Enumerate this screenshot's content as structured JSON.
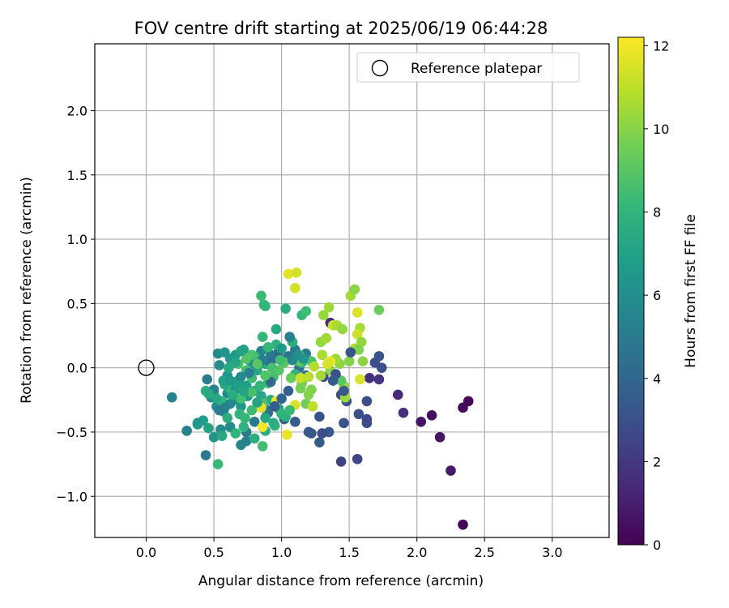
{
  "chart_data": {
    "type": "scatter",
    "title": "FOV centre drift starting at 2025/06/19 06:44:28",
    "xlabel": "Angular distance from reference (arcmin)",
    "ylabel": "Rotation from reference (arcmin)",
    "xlim": [
      -0.38,
      3.42
    ],
    "ylim": [
      -1.32,
      2.52
    ],
    "xticks": [
      0.0,
      0.5,
      1.0,
      1.5,
      2.0,
      2.5,
      3.0
    ],
    "xtick_labels": [
      "0.0",
      "0.5",
      "1.0",
      "1.5",
      "2.0",
      "2.5",
      "3.0"
    ],
    "yticks": [
      -1.0,
      -0.5,
      0.0,
      0.5,
      1.0,
      1.5,
      2.0
    ],
    "ytick_labels": [
      "−1.0",
      "−0.5",
      "0.0",
      "0.5",
      "1.0",
      "1.5",
      "2.0"
    ],
    "grid": true,
    "legend": {
      "position": "top-right",
      "label": "Reference platepar"
    },
    "reference_point": {
      "x": 0.0,
      "y": 0.0
    },
    "colorbar": {
      "label": "Hours from first FF file",
      "min": 0,
      "max": 12.2,
      "ticks": [
        0,
        2,
        4,
        6,
        8,
        10,
        12
      ],
      "tick_labels": [
        "0",
        "2",
        "4",
        "6",
        "8",
        "10",
        "12"
      ],
      "colormap": "viridis",
      "colors": [
        "#440154",
        "#482878",
        "#3e4989",
        "#31688e",
        "#26828e",
        "#1f9e89",
        "#35b779",
        "#6ece58",
        "#b5de2b",
        "#fde725"
      ]
    },
    "series": [
      {
        "points": [
          [
            2.34,
            -1.22,
            0.2
          ],
          [
            2.25,
            -0.8,
            0.8
          ],
          [
            2.17,
            -0.54,
            0.6
          ],
          [
            2.11,
            -0.37,
            0.5
          ],
          [
            2.03,
            -0.42,
            0.7
          ],
          [
            2.34,
            -0.31,
            0.3
          ],
          [
            2.38,
            -0.26,
            0.2
          ],
          [
            1.86,
            -0.21,
            1.4
          ],
          [
            1.9,
            -0.35,
            1.6
          ],
          [
            1.44,
            -0.73,
            2.4
          ],
          [
            1.56,
            -0.71,
            2.6
          ],
          [
            1.63,
            -0.43,
            2.8
          ],
          [
            1.63,
            -0.4,
            2.7
          ],
          [
            1.57,
            -0.36,
            3.0
          ],
          [
            1.63,
            -0.26,
            2.9
          ],
          [
            1.72,
            0.09,
            3.1
          ],
          [
            1.74,
            0.0,
            2.9
          ],
          [
            1.69,
            0.04,
            3.0
          ],
          [
            1.72,
            -0.09,
            1.8
          ],
          [
            1.65,
            -0.08,
            1.7
          ],
          [
            1.46,
            -0.43,
            3.2
          ],
          [
            1.44,
            -0.21,
            2.8
          ],
          [
            1.48,
            -0.26,
            3.2
          ],
          [
            1.36,
            0.35,
            1.5
          ],
          [
            1.31,
            -0.07,
            2.8
          ],
          [
            1.35,
            -0.5,
            3.4
          ],
          [
            1.28,
            -0.38,
            3.1
          ],
          [
            1.22,
            -0.51,
            3.3
          ],
          [
            1.3,
            -0.51,
            2.8
          ],
          [
            1.2,
            -0.5,
            3.4
          ],
          [
            1.1,
            -0.42,
            3.6
          ],
          [
            1.02,
            -0.4,
            3.8
          ],
          [
            1.28,
            -0.58,
            3.6
          ],
          [
            1.18,
            -0.06,
            4.3
          ],
          [
            1.13,
            0.0,
            4.6
          ],
          [
            1.05,
            0.09,
            4.8
          ],
          [
            1.1,
            0.14,
            5.0
          ],
          [
            1.18,
            0.11,
            5.2
          ],
          [
            0.98,
            0.13,
            4.4
          ],
          [
            0.92,
            0.1,
            4.9
          ],
          [
            0.85,
            0.13,
            5.5
          ],
          [
            0.9,
            -0.35,
            4.3
          ],
          [
            0.96,
            -0.29,
            4.6
          ],
          [
            0.88,
            -0.32,
            4.8
          ],
          [
            0.8,
            -0.42,
            4.9
          ],
          [
            0.74,
            -0.5,
            5.0
          ],
          [
            0.74,
            -0.57,
            5.3
          ],
          [
            0.7,
            -0.6,
            5.6
          ],
          [
            0.62,
            -0.46,
            5.8
          ],
          [
            0.55,
            -0.48,
            6.0
          ],
          [
            0.5,
            -0.54,
            6.2
          ],
          [
            0.44,
            -0.68,
            5.0
          ],
          [
            0.38,
            -0.43,
            5.8
          ],
          [
            0.3,
            -0.49,
            5.3
          ],
          [
            0.19,
            -0.23,
            5.5
          ],
          [
            0.45,
            -0.09,
            5.2
          ],
          [
            0.48,
            -0.23,
            5.6
          ],
          [
            0.52,
            -0.3,
            5.8
          ],
          [
            0.57,
            -0.34,
            5.5
          ],
          [
            0.6,
            -0.2,
            5.9
          ],
          [
            0.65,
            -0.25,
            6.2
          ],
          [
            0.7,
            -0.3,
            6.4
          ],
          [
            0.75,
            -0.22,
            6.6
          ],
          [
            0.53,
            0.11,
            5.7
          ],
          [
            0.58,
            0.12,
            6.3
          ],
          [
            0.66,
            0.1,
            6.6
          ],
          [
            0.72,
            0.14,
            6.8
          ],
          [
            0.77,
            0.05,
            7.0
          ],
          [
            0.82,
            -0.02,
            7.2
          ],
          [
            0.88,
            0.03,
            7.4
          ],
          [
            0.62,
            0.07,
            6.5
          ],
          [
            0.54,
            0.02,
            6.0
          ],
          [
            0.6,
            -0.06,
            6.3
          ],
          [
            0.68,
            -0.1,
            6.5
          ],
          [
            0.74,
            -0.14,
            6.8
          ],
          [
            0.8,
            -0.18,
            7.0
          ],
          [
            0.85,
            -0.22,
            7.2
          ],
          [
            0.92,
            -0.25,
            7.4
          ],
          [
            0.98,
            -0.32,
            7.3
          ],
          [
            1.03,
            -0.38,
            7.6
          ],
          [
            0.95,
            -0.45,
            7.8
          ],
          [
            0.88,
            -0.49,
            7.5
          ],
          [
            0.8,
            -0.55,
            7.6
          ],
          [
            0.72,
            -0.46,
            7.8
          ],
          [
            0.66,
            -0.51,
            7.9
          ],
          [
            0.6,
            -0.39,
            7.6
          ],
          [
            0.56,
            -0.53,
            7.3
          ],
          [
            0.53,
            -0.75,
            8.2
          ],
          [
            0.46,
            -0.47,
            7.0
          ],
          [
            0.42,
            -0.41,
            6.8
          ],
          [
            0.38,
            -0.44,
            6.5
          ],
          [
            0.44,
            -0.18,
            7.6
          ],
          [
            0.5,
            -0.2,
            7.8
          ],
          [
            0.56,
            -0.26,
            8.0
          ],
          [
            0.62,
            -0.16,
            8.2
          ],
          [
            0.7,
            -0.24,
            8.4
          ],
          [
            0.78,
            -0.19,
            8.6
          ],
          [
            0.86,
            -0.61,
            8.4
          ],
          [
            0.86,
            -0.28,
            8.8
          ],
          [
            0.9,
            -0.12,
            8.3
          ],
          [
            0.94,
            -0.07,
            8.6
          ],
          [
            0.98,
            -0.02,
            8.9
          ],
          [
            1.02,
            0.04,
            9.0
          ],
          [
            0.85,
            0.56,
            8.3
          ],
          [
            0.87,
            0.49,
            8.0
          ],
          [
            0.86,
            0.24,
            8.1
          ],
          [
            0.96,
            0.3,
            7.4
          ],
          [
            1.03,
            0.46,
            7.6
          ],
          [
            1.15,
            0.41,
            8.0
          ],
          [
            1.18,
            0.44,
            8.4
          ],
          [
            1.08,
            0.2,
            7.6
          ],
          [
            0.96,
            0.18,
            7.8
          ],
          [
            0.9,
            0.16,
            8.2
          ],
          [
            0.8,
            0.09,
            8.0
          ],
          [
            0.74,
            -0.02,
            8.5
          ],
          [
            0.68,
            0.03,
            8.7
          ],
          [
            0.78,
            -0.08,
            8.3
          ],
          [
            0.84,
            -0.14,
            8.0
          ],
          [
            1.1,
            -0.05,
            7.8
          ],
          [
            1.15,
            0.04,
            8.2
          ],
          [
            1.22,
            0.05,
            8.6
          ],
          [
            1.13,
            0.1,
            8.9
          ],
          [
            1.07,
            -0.08,
            9.3
          ],
          [
            1.15,
            -0.12,
            9.6
          ],
          [
            1.22,
            -0.17,
            9.8
          ],
          [
            1.18,
            -0.28,
            9.5
          ],
          [
            1.23,
            -0.3,
            11.0
          ],
          [
            1.14,
            -0.08,
            11.2
          ],
          [
            1.1,
            -0.29,
            11.5
          ],
          [
            0.96,
            -0.26,
            11.9
          ],
          [
            0.85,
            -0.31,
            11.6
          ],
          [
            0.86,
            -0.46,
            12.0
          ],
          [
            1.04,
            -0.52,
            11.8
          ],
          [
            1.1,
            0.62,
            11.4
          ],
          [
            1.05,
            0.73,
            11.7
          ],
          [
            1.11,
            0.74,
            11.4
          ],
          [
            1.29,
            0.2,
            10.2
          ],
          [
            1.33,
            0.23,
            10.5
          ],
          [
            1.31,
            0.41,
            10.3
          ],
          [
            1.35,
            0.47,
            10.4
          ],
          [
            1.38,
            0.33,
            11.2
          ],
          [
            1.41,
            0.33,
            10.6
          ],
          [
            1.45,
            0.3,
            10.2
          ],
          [
            1.51,
            0.56,
            10.5
          ],
          [
            1.54,
            0.61,
            10.0
          ],
          [
            1.58,
            0.31,
            10.6
          ],
          [
            1.56,
            0.26,
            11.3
          ],
          [
            1.59,
            0.2,
            10.2
          ],
          [
            1.54,
            0.15,
            10.6
          ],
          [
            1.57,
            0.14,
            9.8
          ],
          [
            1.6,
            0.05,
            10.1
          ],
          [
            1.58,
            -0.09,
            11.5
          ],
          [
            1.56,
            0.43,
            11.6
          ],
          [
            1.72,
            0.45,
            9.4
          ],
          [
            1.5,
            0.05,
            9.9
          ],
          [
            1.46,
            -0.14,
            10.3
          ],
          [
            1.43,
            0.03,
            10.1
          ],
          [
            1.4,
            0.07,
            10.4
          ],
          [
            1.36,
            -0.02,
            10.0
          ],
          [
            1.3,
            0.1,
            10.6
          ],
          [
            1.24,
            0.01,
            10.8
          ],
          [
            1.29,
            -0.06,
            10.5
          ],
          [
            1.2,
            -0.07,
            10.9
          ],
          [
            1.13,
            0.05,
            9.2
          ],
          [
            1.14,
            -0.16,
            9.6
          ],
          [
            1.2,
            -0.21,
            9.9
          ],
          [
            1.47,
            -0.23,
            10.4
          ],
          [
            1.36,
            0.05,
            11.8
          ],
          [
            1.34,
            0.03,
            11.5
          ],
          [
            1.44,
            -0.1,
            9.0
          ],
          [
            1.51,
            0.12,
            3.2
          ],
          [
            1.4,
            -0.05,
            3.0
          ],
          [
            1.38,
            -0.1,
            3.6
          ],
          [
            1.46,
            -0.18,
            3.4
          ],
          [
            1.05,
            -0.18,
            3.7
          ],
          [
            1.0,
            -0.24,
            3.9
          ],
          [
            0.95,
            -0.3,
            3.5
          ],
          [
            0.92,
            -0.11,
            4.2
          ],
          [
            0.98,
            0.08,
            4.0
          ],
          [
            0.92,
            0.04,
            4.4
          ],
          [
            0.86,
            0.06,
            5.2
          ],
          [
            0.8,
            0.03,
            5.6
          ],
          [
            0.76,
            -0.04,
            5.4
          ],
          [
            0.7,
            -0.07,
            5.8
          ],
          [
            0.66,
            -0.17,
            6.0
          ],
          [
            0.62,
            -0.28,
            5.7
          ],
          [
            0.58,
            -0.31,
            5.4
          ],
          [
            0.54,
            -0.33,
            5.1
          ],
          [
            0.5,
            -0.17,
            5.3
          ],
          [
            0.46,
            -0.2,
            7.4
          ],
          [
            0.52,
            -0.24,
            7.2
          ],
          [
            0.58,
            -0.13,
            7.4
          ],
          [
            0.64,
            -0.21,
            7.6
          ],
          [
            0.69,
            -0.36,
            7.9
          ],
          [
            0.73,
            -0.39,
            8.1
          ],
          [
            0.78,
            -0.33,
            8.3
          ],
          [
            0.82,
            -0.27,
            7.0
          ],
          [
            0.88,
            -0.39,
            7.2
          ],
          [
            0.94,
            -0.43,
            7.6
          ],
          [
            1.0,
            -0.36,
            7.9
          ],
          [
            1.06,
            -0.33,
            8.2
          ],
          [
            0.99,
            0.06,
            8.4
          ],
          [
            0.93,
            0.0,
            8.6
          ],
          [
            0.88,
            -0.06,
            8.8
          ],
          [
            0.82,
            0.03,
            9.0
          ],
          [
            0.78,
            0.1,
            8.7
          ],
          [
            0.74,
            0.07,
            8.9
          ],
          [
            0.7,
            0.13,
            7.0
          ],
          [
            0.66,
            0.04,
            7.2
          ],
          [
            0.61,
            0.0,
            7.4
          ],
          [
            0.57,
            -0.1,
            7.0
          ],
          [
            0.62,
            -0.1,
            6.6
          ],
          [
            0.68,
            -0.14,
            6.9
          ],
          [
            0.72,
            -0.18,
            7.1
          ],
          [
            0.88,
            0.48,
            8.0
          ],
          [
            1.06,
            0.24,
            5.3
          ],
          [
            1.08,
            0.06,
            5.6
          ],
          [
            1.12,
            0.1,
            6.0
          ],
          [
            1.16,
            0.07,
            6.3
          ],
          [
            1.0,
            0.15,
            6.6
          ]
        ]
      }
    ]
  }
}
